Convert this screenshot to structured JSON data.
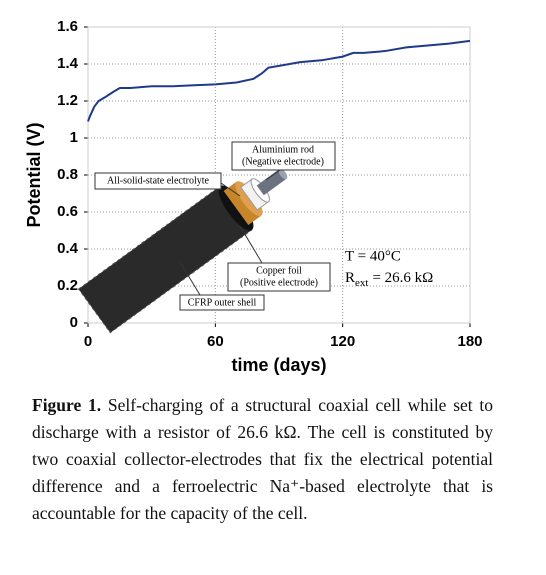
{
  "chart_data": {
    "type": "line",
    "x": [
      0,
      1,
      3,
      5,
      8,
      12,
      15,
      20,
      25,
      30,
      40,
      50,
      60,
      70,
      78,
      82,
      85,
      90,
      100,
      110,
      120,
      125,
      130,
      140,
      150,
      160,
      170,
      180
    ],
    "values": [
      1.09,
      1.12,
      1.17,
      1.2,
      1.22,
      1.25,
      1.27,
      1.27,
      1.275,
      1.28,
      1.28,
      1.285,
      1.29,
      1.3,
      1.32,
      1.35,
      1.38,
      1.39,
      1.41,
      1.42,
      1.44,
      1.46,
      1.46,
      1.47,
      1.49,
      1.5,
      1.51,
      1.525
    ],
    "color": "#1f3a8a",
    "xlabel": "time (days)",
    "ylabel": "Potential (V)",
    "xlim": [
      0,
      180
    ],
    "xticks": [
      0,
      60,
      120,
      180
    ],
    "ylim": [
      0,
      1.6
    ],
    "yticks": [
      0,
      0.2,
      0.4,
      0.6,
      0.8,
      1,
      1.2,
      1.4,
      1.6
    ],
    "grid": true,
    "annotations": [
      "T = 40°C"
    ],
    "r_ext": {
      "symbol": "R",
      "subscript": "ext",
      "value_text": "= 26.6 kΩ"
    },
    "inset_labels": [
      "Aluminium rod",
      "(Negative electrode)",
      "All-solid-state electrolyte",
      "Copper foil",
      "(Positive electrode)",
      "CFRP outer shell"
    ]
  },
  "caption": {
    "label": "Figure 1.",
    "text": "Self-charging of a structural coaxial cell while set to discharge with a resistor of 26.6 kΩ. The cell is constituted by two coaxial collector-electrodes that fix the electrical potential difference and a ferroelectric Na⁺-based electrolyte that is accountable for the capacity of the cell."
  }
}
